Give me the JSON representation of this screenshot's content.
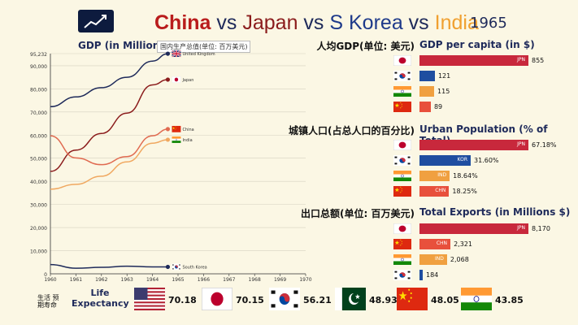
{
  "header": {
    "title_china": "China",
    "title_vs1": " vs ",
    "title_japan": "Japan",
    "title_vs2": " vs ",
    "title_korea": "S Korea",
    "title_vs3": " vs ",
    "title_india": "India",
    "year": "1965"
  },
  "chart_data": [
    {
      "type": "line",
      "title": "GDP (in Millions $)",
      "subtitle": "国内生产总值(单位: 百万美元)",
      "x_ticks": [
        1960,
        1961,
        1962,
        1963,
        1964,
        1965,
        1966,
        1967,
        1968,
        1969,
        1970
      ],
      "xlim": [
        1960,
        1970
      ],
      "ylim": [
        0,
        95232
      ],
      "y_ticks": [
        {
          "value": 95232,
          "label": "95,232"
        },
        {
          "value": 90000,
          "label": "90,000"
        },
        {
          "value": 80000,
          "label": "80,000"
        },
        {
          "value": 70000,
          "label": "70,000"
        },
        {
          "value": 60000,
          "label": "60,000"
        },
        {
          "value": 50000,
          "label": "50,000"
        },
        {
          "value": 40000,
          "label": "40,000"
        },
        {
          "value": 30000,
          "label": "30,000"
        },
        {
          "value": 20000,
          "label": "20,000"
        },
        {
          "value": 10000,
          "label": "10,000"
        },
        {
          "value": 0,
          "label": "0"
        }
      ],
      "grid": true,
      "series": [
        {
          "name": "United Kingdom",
          "color": "#1e2a5a",
          "flag": "uk",
          "x": [
            1960,
            1961,
            1962,
            1963,
            1964,
            1964.6
          ],
          "y": [
            72300,
            76500,
            80500,
            85000,
            92000,
            95200
          ]
        },
        {
          "name": "Japan",
          "color": "#8b1c1c",
          "flag": "japan",
          "x": [
            1960,
            1961,
            1962,
            1963,
            1964,
            1964.6
          ],
          "y": [
            44300,
            53500,
            60700,
            69500,
            81700,
            84000
          ]
        },
        {
          "name": "China",
          "color": "#e06a50",
          "flag": "china",
          "x": [
            1960,
            1961,
            1962,
            1963,
            1964,
            1964.6
          ],
          "y": [
            59700,
            50100,
            47200,
            50700,
            59700,
            62600
          ]
        },
        {
          "name": "India",
          "color": "#f0a860",
          "flag": "india",
          "x": [
            1960,
            1961,
            1962,
            1963,
            1964,
            1964.6
          ],
          "y": [
            36600,
            38700,
            42200,
            48400,
            56500,
            58000
          ]
        },
        {
          "name": "South Korea",
          "color": "#1e2a5a",
          "flag": "korea",
          "x": [
            1960,
            1961,
            1962,
            1963,
            1964,
            1964.6
          ],
          "y": [
            4000,
            2400,
            2800,
            3300,
            3000,
            3000
          ]
        }
      ]
    },
    {
      "type": "bar",
      "title": "GDP per capita (in $)",
      "title_cn": "人均GDP(单位: 美元)",
      "categories": [
        "JPN",
        "KOR",
        "IND",
        "CHN"
      ],
      "flags": [
        "japan",
        "korea",
        "india",
        "china"
      ],
      "colors": [
        "#c8283c",
        "#1f4ea0",
        "#f0a040",
        "#e8503c"
      ],
      "values": [
        855,
        121,
        115,
        89
      ],
      "labels": [
        "855",
        "121",
        "115",
        "89"
      ],
      "code_inside": [
        true,
        false,
        false,
        false
      ]
    },
    {
      "type": "bar",
      "title": "Urban Population (% of Total)",
      "title_cn": "城镇人口(占总人口的百分比)",
      "categories": [
        "JPN",
        "KOR",
        "IND",
        "CHN"
      ],
      "flags": [
        "japan",
        "korea",
        "india",
        "china"
      ],
      "colors": [
        "#c8283c",
        "#1f4ea0",
        "#f0a040",
        "#e8503c"
      ],
      "values": [
        67.18,
        31.6,
        18.64,
        18.25
      ],
      "labels": [
        "67.18%",
        "31.60%",
        "18.64%",
        "18.25%"
      ],
      "code_inside": [
        true,
        true,
        true,
        true
      ]
    },
    {
      "type": "bar",
      "title": "Total Exports (in Millions $)",
      "title_cn": "出口总额(单位: 百万美元)",
      "categories": [
        "JPN",
        "CHN",
        "IND",
        "KOR"
      ],
      "flags": [
        "japan",
        "china",
        "india",
        "korea"
      ],
      "colors": [
        "#c8283c",
        "#e8503c",
        "#f0a040",
        "#1f4ea0"
      ],
      "values": [
        8170,
        2321,
        2068,
        184
      ],
      "labels": [
        "8,170",
        "2,321",
        "2,068",
        "184"
      ],
      "code_inside": [
        true,
        true,
        true,
        false
      ]
    }
  ],
  "life_expectancy": {
    "label": "Life Expectancy",
    "label_cn": "生活 预期寿命",
    "items": [
      {
        "flag": "usa",
        "value": "70.18"
      },
      {
        "flag": "japan",
        "value": "70.15"
      },
      {
        "flag": "korea",
        "value": "56.21"
      },
      {
        "flag": "pakistan",
        "value": "48.93"
      },
      {
        "flag": "china",
        "value": "48.05"
      },
      {
        "flag": "india",
        "value": "43.85"
      }
    ]
  }
}
